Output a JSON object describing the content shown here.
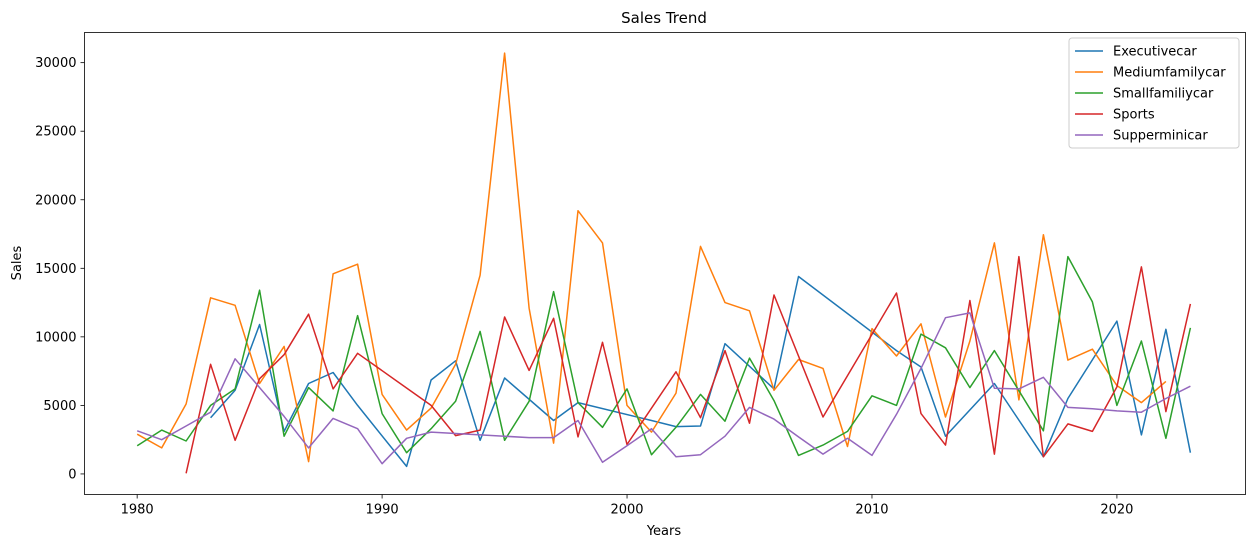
{
  "chart_data": {
    "type": "line",
    "title": "Sales Trend",
    "xlabel": "Years",
    "ylabel": "Sales",
    "xlim": [
      1978.2,
      1980.0
    ],
    "ylim": [
      -1500,
      32200
    ],
    "xticks": [
      1980,
      1990,
      2000,
      2010,
      2020
    ],
    "yticks": [
      0,
      5000,
      10000,
      15000,
      20000,
      25000,
      30000
    ],
    "legend_position": "top-right",
    "grid": false,
    "series": [
      {
        "name": "Executivecar",
        "color": "#1f77b4",
        "points": [
          [
            1983,
            4100
          ],
          [
            1984,
            6100
          ],
          [
            1985,
            10900
          ],
          [
            1986,
            3100
          ],
          [
            1987,
            6600
          ],
          [
            1988,
            7400
          ],
          [
            1989,
            5000
          ],
          [
            1991,
            550
          ],
          [
            1992,
            6850
          ],
          [
            1993,
            8250
          ],
          [
            1994,
            2450
          ],
          [
            1995,
            7000
          ],
          [
            1997,
            3900
          ],
          [
            1998,
            5200
          ],
          [
            2001,
            3900
          ],
          [
            2002,
            3450
          ],
          [
            2003,
            3500
          ],
          [
            2004,
            9500
          ],
          [
            2006,
            6200
          ],
          [
            2007,
            14400
          ],
          [
            2011,
            9000
          ],
          [
            2012,
            7800
          ],
          [
            2013,
            2750
          ],
          [
            2015,
            6600
          ],
          [
            2017,
            1250
          ],
          [
            2018,
            5500
          ],
          [
            2020,
            11150
          ],
          [
            2021,
            2850
          ],
          [
            2022,
            10550
          ],
          [
            2023,
            1550
          ]
        ]
      },
      {
        "name": "Mediumfamilycar",
        "color": "#ff7f0e",
        "points": [
          [
            1980,
            2900
          ],
          [
            1981,
            1900
          ],
          [
            1982,
            5100
          ],
          [
            1983,
            12850
          ],
          [
            1984,
            12300
          ],
          [
            1985,
            6600
          ],
          [
            1986,
            9300
          ],
          [
            1987,
            900
          ],
          [
            1988,
            14600
          ],
          [
            1989,
            15300
          ],
          [
            1990,
            5800
          ],
          [
            1991,
            3200
          ],
          [
            1992,
            4800
          ],
          [
            1993,
            8000
          ],
          [
            1994,
            14500
          ],
          [
            1995,
            30700
          ],
          [
            1996,
            12100
          ],
          [
            1997,
            2250
          ],
          [
            1998,
            19200
          ],
          [
            1999,
            16850
          ],
          [
            2000,
            5000
          ],
          [
            2001,
            3050
          ],
          [
            2002,
            5900
          ],
          [
            2003,
            16600
          ],
          [
            2004,
            12500
          ],
          [
            2005,
            11900
          ],
          [
            2006,
            6100
          ],
          [
            2007,
            8350
          ],
          [
            2008,
            7700
          ],
          [
            2009,
            2000
          ],
          [
            2010,
            10600
          ],
          [
            2011,
            8600
          ],
          [
            2012,
            10950
          ],
          [
            2013,
            4150
          ],
          [
            2014,
            9700
          ],
          [
            2015,
            16850
          ],
          [
            2016,
            5400
          ],
          [
            2017,
            17450
          ],
          [
            2018,
            8300
          ],
          [
            2019,
            9100
          ],
          [
            2020,
            6450
          ],
          [
            2021,
            5200
          ],
          [
            2022,
            6750
          ]
        ]
      },
      {
        "name": "Smallfamiliycar",
        "color": "#2ca02c",
        "points": [
          [
            1980,
            2050
          ],
          [
            1981,
            3200
          ],
          [
            1982,
            2400
          ],
          [
            1983,
            5000
          ],
          [
            1984,
            6200
          ],
          [
            1985,
            13400
          ],
          [
            1986,
            2750
          ],
          [
            1987,
            6300
          ],
          [
            1988,
            4600
          ],
          [
            1989,
            11550
          ],
          [
            1990,
            4400
          ],
          [
            1991,
            1550
          ],
          [
            1992,
            3300
          ],
          [
            1993,
            5300
          ],
          [
            1994,
            10400
          ],
          [
            1995,
            2450
          ],
          [
            1996,
            5300
          ],
          [
            1997,
            13300
          ],
          [
            1998,
            5200
          ],
          [
            1999,
            3400
          ],
          [
            2000,
            6200
          ],
          [
            2001,
            1400
          ],
          [
            2002,
            3400
          ],
          [
            2003,
            5800
          ],
          [
            2004,
            3850
          ],
          [
            2005,
            8450
          ],
          [
            2006,
            5350
          ],
          [
            2007,
            1350
          ],
          [
            2008,
            2100
          ],
          [
            2009,
            3100
          ],
          [
            2010,
            5700
          ],
          [
            2011,
            5000
          ],
          [
            2012,
            10200
          ],
          [
            2013,
            9200
          ],
          [
            2014,
            6300
          ],
          [
            2015,
            9000
          ],
          [
            2017,
            3150
          ],
          [
            2018,
            15850
          ],
          [
            2019,
            12550
          ],
          [
            2020,
            5000
          ],
          [
            2021,
            9700
          ],
          [
            2022,
            2600
          ],
          [
            2023,
            10650
          ]
        ]
      },
      {
        "name": "Sports",
        "color": "#d62728",
        "points": [
          [
            1982,
            50
          ],
          [
            1983,
            8000
          ],
          [
            1984,
            2450
          ],
          [
            1985,
            6950
          ],
          [
            1986,
            8700
          ],
          [
            1987,
            11650
          ],
          [
            1988,
            6200
          ],
          [
            1989,
            8800
          ],
          [
            1992,
            5000
          ],
          [
            1993,
            2800
          ],
          [
            1994,
            3200
          ],
          [
            1995,
            11450
          ],
          [
            1996,
            7550
          ],
          [
            1997,
            11350
          ],
          [
            1998,
            2700
          ],
          [
            1999,
            9600
          ],
          [
            2000,
            2150
          ],
          [
            2002,
            7450
          ],
          [
            2003,
            4100
          ],
          [
            2004,
            9000
          ],
          [
            2005,
            3700
          ],
          [
            2006,
            13050
          ],
          [
            2008,
            4150
          ],
          [
            2011,
            13200
          ],
          [
            2012,
            4400
          ],
          [
            2013,
            2100
          ],
          [
            2014,
            12650
          ],
          [
            2015,
            1450
          ],
          [
            2016,
            15850
          ],
          [
            2017,
            1250
          ],
          [
            2018,
            3650
          ],
          [
            2019,
            3100
          ],
          [
            2020,
            6350
          ],
          [
            2021,
            15100
          ],
          [
            2022,
            4550
          ],
          [
            2023,
            12400
          ]
        ]
      },
      {
        "name": "Supperminicar",
        "color": "#9467bd",
        "points": [
          [
            1980,
            3150
          ],
          [
            1981,
            2500
          ],
          [
            1982,
            3500
          ],
          [
            1983,
            4500
          ],
          [
            1984,
            8400
          ],
          [
            1985,
            6300
          ],
          [
            1986,
            4200
          ],
          [
            1987,
            1900
          ],
          [
            1988,
            4050
          ],
          [
            1989,
            3300
          ],
          [
            1990,
            750
          ],
          [
            1991,
            2600
          ],
          [
            1992,
            3050
          ],
          [
            1994,
            2850
          ],
          [
            1996,
            2650
          ],
          [
            1997,
            2650
          ],
          [
            1998,
            3900
          ],
          [
            1999,
            850
          ],
          [
            2000,
            2050
          ],
          [
            2001,
            3300
          ],
          [
            2002,
            1250
          ],
          [
            2003,
            1400
          ],
          [
            2004,
            2750
          ],
          [
            2005,
            4850
          ],
          [
            2006,
            4000
          ],
          [
            2007,
            2700
          ],
          [
            2008,
            1450
          ],
          [
            2009,
            2600
          ],
          [
            2010,
            1350
          ],
          [
            2011,
            4350
          ],
          [
            2012,
            7700
          ],
          [
            2013,
            11400
          ],
          [
            2014,
            11750
          ],
          [
            2015,
            6250
          ],
          [
            2016,
            6200
          ],
          [
            2017,
            7050
          ],
          [
            2018,
            4850
          ],
          [
            2019,
            4750
          ],
          [
            2020,
            4600
          ],
          [
            2021,
            4500
          ],
          [
            2022,
            5500
          ],
          [
            2023,
            6400
          ]
        ]
      }
    ]
  }
}
